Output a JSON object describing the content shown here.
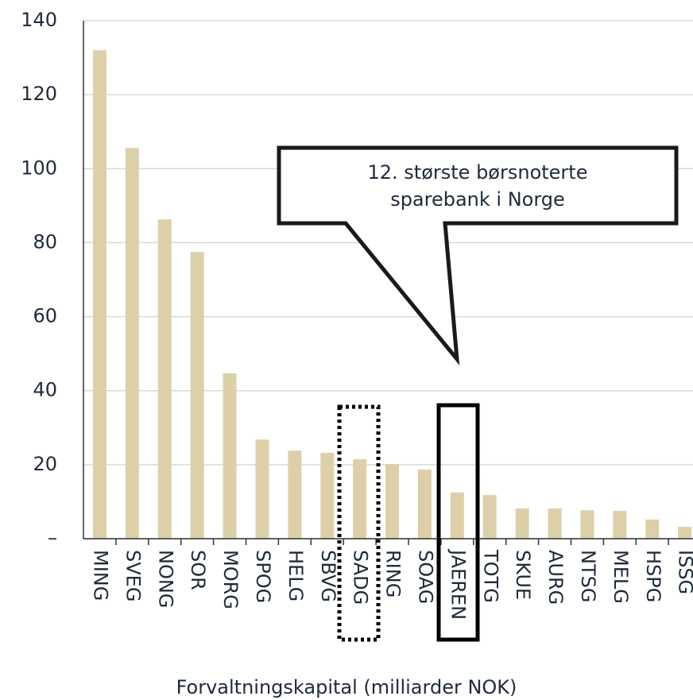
{
  "chart_data": {
    "type": "bar",
    "categories": [
      "MING",
      "SVEG",
      "NONG",
      "SOR",
      "MORG",
      "SPOG",
      "HELG",
      "SBVG",
      "SADG",
      "RING",
      "SOAG",
      "JAEREN",
      "TOTG",
      "SKUE",
      "AURG",
      "NTSG",
      "MELG",
      "HSPG",
      "ISSG"
    ],
    "values": [
      132,
      105.6,
      86.3,
      77.5,
      44.7,
      26.8,
      23.8,
      23.2,
      21.5,
      20.2,
      18.7,
      12.5,
      11.8,
      8.2,
      8.2,
      7.7,
      7.5,
      5.2,
      3.2
    ],
    "color": "#ddd0a8",
    "ylim": [
      0,
      140
    ],
    "yticks": [
      {
        "value": 0,
        "label": "–"
      },
      20,
      40,
      60,
      80,
      100,
      120,
      140
    ],
    "grid": true,
    "xlabel": "Forvaltningskapital (milliarder NOK)",
    "annotation": [
      "12. største børsnoterte",
      "sparebank i Norge"
    ]
  }
}
